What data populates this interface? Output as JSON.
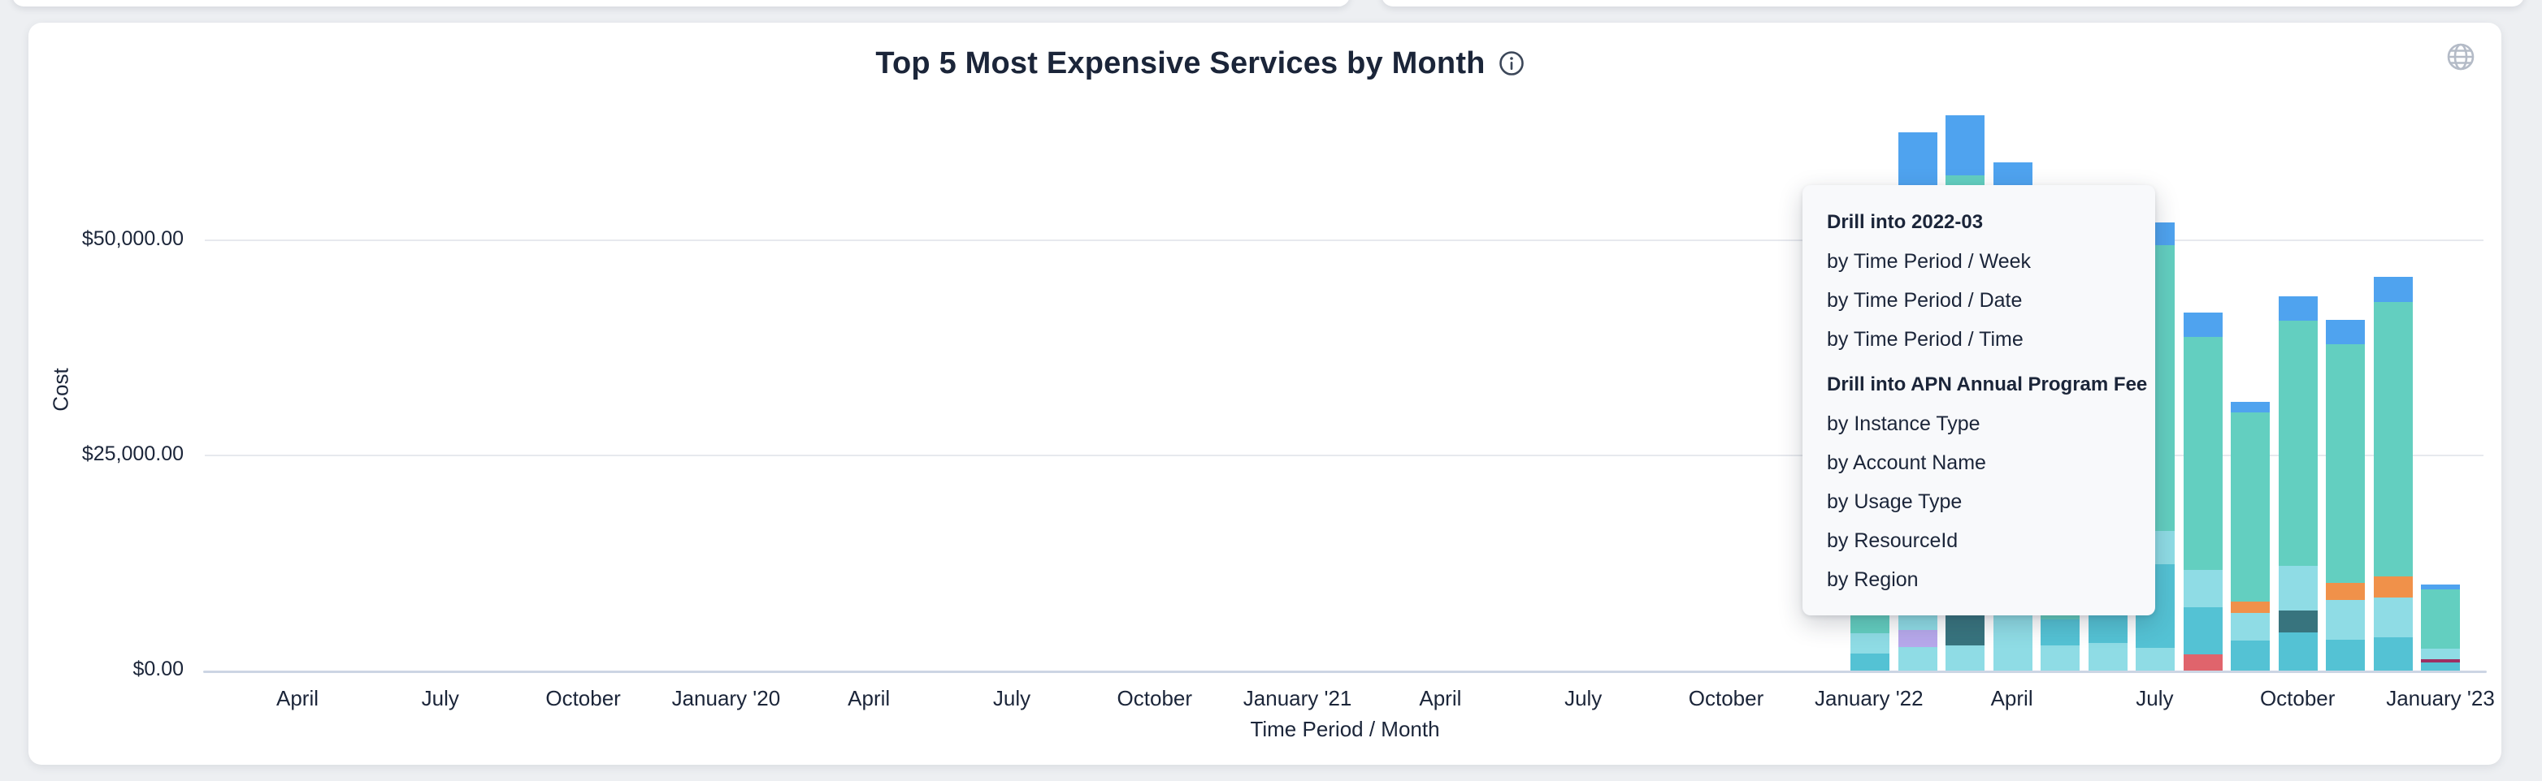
{
  "page": {
    "background": "#edeff2",
    "card_background": "#ffffff"
  },
  "header": {
    "title": "Top 5 Most Expensive Services by Month",
    "icons": {
      "info": "info-circle-icon",
      "globe": "globe-icon"
    }
  },
  "menu": {
    "sections": [
      {
        "header": "Drill into 2022-03",
        "items": [
          "by Time Period / Week",
          "by Time Period / Date",
          "by Time Period / Time"
        ]
      },
      {
        "header": "Drill into APN Annual Program Fee",
        "items": [
          "by Instance Type",
          "by Account Name",
          "by Usage Type",
          "by ResourceId",
          "by Region"
        ]
      }
    ]
  },
  "chart_data": {
    "type": "bar",
    "stacked": true,
    "title": "Top 5 Most Expensive Services by Month",
    "xlabel": "Time Period / Month",
    "ylabel": "Cost",
    "grid": "horizontal",
    "legend": "none",
    "ylim": [
      0,
      68000
    ],
    "y_ticks": [
      {
        "value": 0,
        "label": "$0.00"
      },
      {
        "value": 25000,
        "label": "$25,000.00"
      },
      {
        "value": 50000,
        "label": "$50,000.00"
      }
    ],
    "x_tick_labels": [
      "April",
      "July",
      "October",
      "January '20",
      "April",
      "July",
      "October",
      "January '21",
      "April",
      "July",
      "October",
      "January '22",
      "April",
      "July",
      "October",
      "January '23"
    ],
    "colors": {
      "blue": "#4fa3ef",
      "teal": "#63cfc0",
      "pale_cyan": "#8fdce5",
      "medium_cyan": "#54c2d4",
      "dark_teal": "#38747e",
      "orange": "#f0914a",
      "red": "#e0646c",
      "purple": "#b7a8eb",
      "maroon": "#9e2f63"
    },
    "bars": [
      {
        "month": "2022-01",
        "label": "January '22",
        "total": 35500,
        "partially_hidden_by_menu": true,
        "segments": [
          {
            "color": "blue",
            "value": 2700
          },
          {
            "color": "teal",
            "value": 28500
          },
          {
            "color": "pale_cyan",
            "value": 2300
          },
          {
            "color": "medium_cyan",
            "value": 2000
          }
        ]
      },
      {
        "month": "2022-02",
        "label": "February '22",
        "total": 62550,
        "partially_hidden_by_menu": true,
        "segments": [
          {
            "color": "blue",
            "value": 7000
          },
          {
            "color": "teal",
            "value": 38300
          },
          {
            "color": "medium_cyan",
            "value": 6030
          },
          {
            "color": "pale_cyan",
            "value": 6500
          },
          {
            "color": "purple",
            "value": 1980
          },
          {
            "color": "pale_cyan",
            "value": 2740
          }
        ]
      },
      {
        "month": "2022-03",
        "label": "March '22",
        "total": 64530,
        "partially_hidden_by_menu": true,
        "segments": [
          {
            "color": "blue",
            "value": 7000
          },
          {
            "color": "teal",
            "value": 37000
          },
          {
            "color": "medium_cyan",
            "value": 5200
          },
          {
            "color": "pale_cyan",
            "value": 4900
          },
          {
            "color": "dark_teal",
            "value": 7510
          },
          {
            "color": "pale_cyan",
            "value": 2920
          }
        ]
      },
      {
        "month": "2022-04",
        "label": "April '22",
        "total": 59060,
        "partially_hidden_by_menu": true,
        "segments": [
          {
            "color": "blue",
            "value": 7000
          },
          {
            "color": "teal",
            "value": 38000
          },
          {
            "color": "medium_cyan",
            "value": 6300
          },
          {
            "color": "pale_cyan",
            "value": 7760
          }
        ]
      },
      {
        "month": "2022-05",
        "label": "May '22",
        "total": 45000,
        "partially_hidden_by_menu": true,
        "segments": [
          {
            "color": "blue",
            "value": 6100
          },
          {
            "color": "teal",
            "value": 33000
          },
          {
            "color": "medium_cyan",
            "value": 3000
          },
          {
            "color": "pale_cyan",
            "value": 2900
          }
        ]
      },
      {
        "month": "2022-06",
        "label": "June '22",
        "total": 48000,
        "partially_hidden_by_menu": true,
        "segments": [
          {
            "color": "blue",
            "value": 2800
          },
          {
            "color": "teal",
            "value": 38000
          },
          {
            "color": "medium_cyan",
            "value": 4000
          },
          {
            "color": "pale_cyan",
            "value": 3200
          }
        ]
      },
      {
        "month": "2022-07",
        "label": "July '22",
        "total": 52075,
        "partially_hidden_by_menu": false,
        "segments": [
          {
            "color": "blue",
            "value": 2600
          },
          {
            "color": "teal",
            "value": 33275
          },
          {
            "color": "pale_cyan",
            "value": 3800
          },
          {
            "color": "medium_cyan",
            "value": 9800
          },
          {
            "color": "pale_cyan",
            "value": 2600
          }
        ]
      },
      {
        "month": "2022-08",
        "label": "August '22",
        "total": 41600,
        "partially_hidden_by_menu": false,
        "segments": [
          {
            "color": "blue",
            "value": 2800
          },
          {
            "color": "teal",
            "value": 27100
          },
          {
            "color": "pale_cyan",
            "value": 4300
          },
          {
            "color": "medium_cyan",
            "value": 5500
          },
          {
            "color": "red",
            "value": 1900
          }
        ]
      },
      {
        "month": "2022-09",
        "label": "September '22",
        "total": 31200,
        "partially_hidden_by_menu": false,
        "segments": [
          {
            "color": "blue",
            "value": 1200
          },
          {
            "color": "teal",
            "value": 22000
          },
          {
            "color": "orange",
            "value": 1300
          },
          {
            "color": "pale_cyan",
            "value": 3200
          },
          {
            "color": "medium_cyan",
            "value": 3500
          }
        ]
      },
      {
        "month": "2022-10",
        "label": "October '22",
        "total": 43500,
        "partially_hidden_by_menu": false,
        "segments": [
          {
            "color": "blue",
            "value": 2800
          },
          {
            "color": "teal",
            "value": 28500
          },
          {
            "color": "pale_cyan",
            "value": 5200
          },
          {
            "color": "dark_teal",
            "value": 2600
          },
          {
            "color": "medium_cyan",
            "value": 4400
          }
        ]
      },
      {
        "month": "2022-11",
        "label": "November '22",
        "total": 40750,
        "partially_hidden_by_menu": false,
        "segments": [
          {
            "color": "blue",
            "value": 2800
          },
          {
            "color": "teal",
            "value": 27800
          },
          {
            "color": "orange",
            "value": 1900
          },
          {
            "color": "pale_cyan",
            "value": 4650
          },
          {
            "color": "medium_cyan",
            "value": 3600
          }
        ]
      },
      {
        "month": "2022-12",
        "label": "December '22",
        "total": 45800,
        "partially_hidden_by_menu": false,
        "segments": [
          {
            "color": "blue",
            "value": 3000
          },
          {
            "color": "teal",
            "value": 31900
          },
          {
            "color": "orange",
            "value": 2400
          },
          {
            "color": "pale_cyan",
            "value": 4650
          },
          {
            "color": "medium_cyan",
            "value": 3850
          }
        ]
      },
      {
        "month": "2023-01",
        "label": "January '23",
        "total": 10020,
        "partially_hidden_by_menu": false,
        "segments": [
          {
            "color": "blue",
            "value": 570
          },
          {
            "color": "teal",
            "value": 6900
          },
          {
            "color": "pale_cyan",
            "value": 1230
          },
          {
            "color": "maroon",
            "value": 380
          },
          {
            "color": "medium_cyan",
            "value": 940
          }
        ]
      }
    ]
  }
}
